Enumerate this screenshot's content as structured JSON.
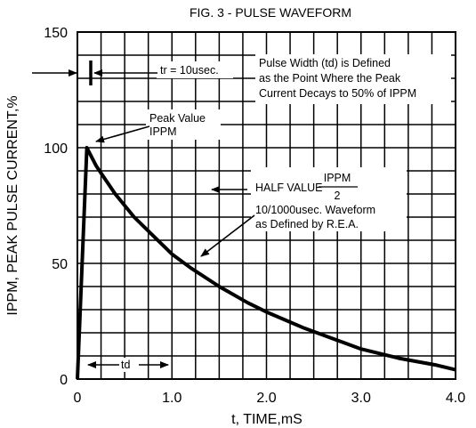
{
  "chart_data": {
    "type": "line",
    "title": "FIG. 3 - PULSE WAVEFORM",
    "xlabel": "t, TIME,mS",
    "ylabel": "IPPM, PEAK PULSE CURRENT,%",
    "xlim": [
      0,
      4.0
    ],
    "ylim": [
      0,
      150
    ],
    "x_ticks": [
      "0",
      "1.0",
      "2.0",
      "3.0",
      "4.0"
    ],
    "y_ticks": [
      "0",
      "50",
      "100",
      "150"
    ],
    "grid": true,
    "series": [
      {
        "x": [
          0,
          0.1,
          0.2,
          0.4,
          0.6,
          0.8,
          1.0,
          1.2,
          1.5,
          1.8,
          2.0,
          2.4,
          2.8,
          3.0,
          3.4,
          3.8,
          4.0
        ],
        "values": [
          0,
          100,
          92,
          80,
          70,
          62,
          54,
          48,
          40,
          33,
          29,
          22,
          16,
          13,
          9,
          6,
          4
        ]
      }
    ],
    "annotations": {
      "tr": "tr = 10usec.",
      "pulse_width_line1": "Pulse Width (td) is Defined",
      "pulse_width_line2": "as the Point Where the Peak",
      "pulse_width_line3": "Current Decays to 50% of IPPM",
      "peak_line1": "Peak Value",
      "peak_line2": "IPPM",
      "half_value": "HALF VALUE",
      "half_value_numerator": "IPPM",
      "half_value_denominator": "2",
      "waveform_line1": "10/1000usec. Waveform",
      "waveform_line2": "as Defined by R.E.A.",
      "td": "td"
    }
  }
}
